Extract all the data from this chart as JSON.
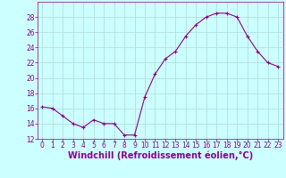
{
  "x": [
    0,
    1,
    2,
    3,
    4,
    5,
    6,
    7,
    8,
    9,
    10,
    11,
    12,
    13,
    14,
    15,
    16,
    17,
    18,
    19,
    20,
    21,
    22,
    23
  ],
  "y": [
    16.2,
    16.0,
    15.0,
    14.0,
    13.5,
    14.5,
    14.0,
    14.0,
    12.5,
    12.5,
    17.5,
    20.5,
    22.5,
    23.5,
    25.5,
    27.0,
    28.0,
    28.5,
    28.5,
    28.0,
    25.5,
    23.5,
    22.0,
    21.5
  ],
  "line_color": "#8b008b",
  "marker_color": "#8b008b",
  "bg_color": "#ccffff",
  "grid_color": "#b0d8d8",
  "xlabel": "Windchill (Refroidissement éolien,°C)",
  "xlabel_color": "#8b008b",
  "ylim": [
    12,
    30
  ],
  "yticks": [
    12,
    14,
    16,
    18,
    20,
    22,
    24,
    26,
    28
  ],
  "xticks": [
    0,
    1,
    2,
    3,
    4,
    5,
    6,
    7,
    8,
    9,
    10,
    11,
    12,
    13,
    14,
    15,
    16,
    17,
    18,
    19,
    20,
    21,
    22,
    23
  ],
  "tick_color": "#8b008b",
  "tick_fontsize": 5.5,
  "xlabel_fontsize": 7.0,
  "xlabel_fontweight": "bold"
}
